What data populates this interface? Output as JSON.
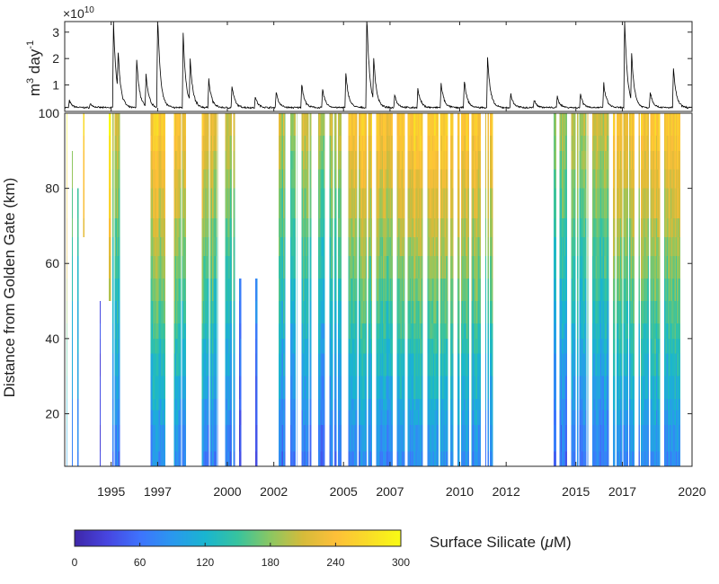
{
  "chart_data": [
    {
      "type": "line",
      "panel": "discharge",
      "title": "",
      "ylabel": "m3 day-1",
      "ylabel_base": "m",
      "ylabel_sup1": "3",
      "ylabel_mid": " day",
      "ylabel_sup2": "-1",
      "exponent_prefix": "×10",
      "exponent_power": "10",
      "ylim": [
        0,
        3.4
      ],
      "xlim": [
        1993,
        2020
      ],
      "y_ticks": [
        1,
        2,
        3
      ],
      "y_tick_labels": [
        "1",
        "2",
        "3"
      ],
      "peaks": [
        {
          "x": 1993.2,
          "y": 0.25
        },
        {
          "x": 1994.1,
          "y": 0.15
        },
        {
          "x": 1995.1,
          "y": 3.3
        },
        {
          "x": 1995.3,
          "y": 1.5
        },
        {
          "x": 1996.1,
          "y": 1.8
        },
        {
          "x": 1996.5,
          "y": 1.2
        },
        {
          "x": 1997.0,
          "y": 3.5
        },
        {
          "x": 1998.1,
          "y": 2.8
        },
        {
          "x": 1998.4,
          "y": 1.6
        },
        {
          "x": 1999.2,
          "y": 1.1
        },
        {
          "x": 2000.2,
          "y": 0.8
        },
        {
          "x": 2001.2,
          "y": 0.4
        },
        {
          "x": 2002.1,
          "y": 0.6
        },
        {
          "x": 2003.2,
          "y": 0.9
        },
        {
          "x": 2004.1,
          "y": 0.7
        },
        {
          "x": 2005.1,
          "y": 1.3
        },
        {
          "x": 2006.0,
          "y": 3.6
        },
        {
          "x": 2006.3,
          "y": 1.6
        },
        {
          "x": 2007.2,
          "y": 0.5
        },
        {
          "x": 2008.2,
          "y": 0.7
        },
        {
          "x": 2009.2,
          "y": 0.9
        },
        {
          "x": 2010.2,
          "y": 1.0
        },
        {
          "x": 2011.2,
          "y": 1.9
        },
        {
          "x": 2012.2,
          "y": 0.5
        },
        {
          "x": 2013.2,
          "y": 0.3
        },
        {
          "x": 2014.2,
          "y": 0.4
        },
        {
          "x": 2015.2,
          "y": 0.5
        },
        {
          "x": 2016.2,
          "y": 0.9
        },
        {
          "x": 2017.1,
          "y": 3.3
        },
        {
          "x": 2017.4,
          "y": 1.8
        },
        {
          "x": 2018.2,
          "y": 0.6
        },
        {
          "x": 2019.2,
          "y": 1.5
        }
      ]
    },
    {
      "type": "heatmap",
      "panel": "silicate",
      "ylabel": "Distance from Golden Gate  (km)",
      "xlim": [
        1993,
        2020
      ],
      "ylim": [
        6,
        100
      ],
      "x_ticks": [
        1995,
        1997,
        2000,
        2002,
        2005,
        2007,
        2010,
        2012,
        2015,
        2017,
        2020
      ],
      "x_tick_labels": [
        "1995",
        "1997",
        "2000",
        "2002",
        "2005",
        "2007",
        "2010",
        "2012",
        "2015",
        "2017",
        "2020"
      ],
      "y_ticks": [
        20,
        40,
        60,
        80,
        100
      ],
      "y_tick_labels": [
        "20",
        "40",
        "60",
        "80",
        "100"
      ],
      "distance_bins": [
        6,
        10,
        17,
        21,
        24,
        30,
        36,
        40,
        44,
        50,
        56,
        62,
        67,
        72,
        80,
        85,
        90,
        94,
        100
      ],
      "colorbar": {
        "label": "Surface Silicate (",
        "label_mu": "μ",
        "label_unit": "M)",
        "min": 0,
        "max": 300,
        "ticks": [
          0,
          60,
          120,
          180,
          240,
          300
        ],
        "tick_labels": [
          "0",
          "60",
          "120",
          "180",
          "240",
          "300"
        ],
        "colormap": [
          "#3e26a8",
          "#4745e0",
          "#3e73fd",
          "#2a98ee",
          "#19b5d0",
          "#37c39e",
          "#8bc762",
          "#d6bb3a",
          "#fdbf39",
          "#f9dc28",
          "#f9fb14"
        ]
      },
      "surveys": [
        {
          "start": 1993.0,
          "end": 1993.05,
          "top": 85,
          "bottom": 6,
          "level": 0.82
        },
        {
          "start": 1993.05,
          "end": 1993.12,
          "top": 100,
          "bottom": 6,
          "level": 0.85
        },
        {
          "start": 1993.3,
          "end": 1993.35,
          "top": 90,
          "bottom": 6,
          "level": 0.6
        },
        {
          "start": 1993.55,
          "end": 1993.6,
          "top": 80,
          "bottom": 6,
          "level": 0.55
        },
        {
          "start": 1993.8,
          "end": 1993.85,
          "top": 100,
          "bottom": 65,
          "level": 0.82
        },
        {
          "start": 1994.5,
          "end": 1994.55,
          "top": 50,
          "bottom": 6,
          "level": 0.1
        },
        {
          "start": 1994.9,
          "end": 1995.0,
          "top": 100,
          "bottom": 50,
          "level": 0.85
        },
        {
          "start": 1995.05,
          "end": 1995.35,
          "top": 100,
          "bottom": 6,
          "level": 0.6
        },
        {
          "start": 1996.7,
          "end": 1997.3,
          "top": 100,
          "bottom": 6,
          "level": 0.75
        },
        {
          "start": 1997.7,
          "end": 1998.2,
          "top": 100,
          "bottom": 6,
          "level": 0.72
        },
        {
          "start": 1998.9,
          "end": 1999.6,
          "top": 100,
          "bottom": 6,
          "level": 0.68
        },
        {
          "start": 1999.9,
          "end": 2000.3,
          "top": 100,
          "bottom": 6,
          "level": 0.62
        },
        {
          "start": 2000.5,
          "end": 2000.6,
          "top": 60,
          "bottom": 6,
          "level": 0.4
        },
        {
          "start": 2001.2,
          "end": 2001.3,
          "top": 60,
          "bottom": 6,
          "level": 0.42
        },
        {
          "start": 2002.2,
          "end": 2002.5,
          "top": 100,
          "bottom": 6,
          "level": 0.6
        },
        {
          "start": 2002.7,
          "end": 2003.0,
          "top": 100,
          "bottom": 6,
          "level": 0.55
        },
        {
          "start": 2003.2,
          "end": 2003.6,
          "top": 100,
          "bottom": 6,
          "level": 0.62
        },
        {
          "start": 2003.9,
          "end": 2004.2,
          "top": 100,
          "bottom": 6,
          "level": 0.58
        },
        {
          "start": 2004.4,
          "end": 2004.9,
          "top": 100,
          "bottom": 6,
          "level": 0.6
        },
        {
          "start": 2005.1,
          "end": 2006.2,
          "top": 100,
          "bottom": 6,
          "level": 0.72
        },
        {
          "start": 2006.4,
          "end": 2007.1,
          "top": 100,
          "bottom": 6,
          "level": 0.7
        },
        {
          "start": 2007.3,
          "end": 2008.4,
          "top": 100,
          "bottom": 6,
          "level": 0.75
        },
        {
          "start": 2008.6,
          "end": 2009.7,
          "top": 100,
          "bottom": 6,
          "level": 0.74
        },
        {
          "start": 2009.9,
          "end": 2010.9,
          "top": 100,
          "bottom": 6,
          "level": 0.73
        },
        {
          "start": 2011.1,
          "end": 2011.4,
          "top": 100,
          "bottom": 6,
          "level": 0.72
        },
        {
          "start": 2014.0,
          "end": 2014.6,
          "top": 100,
          "bottom": 6,
          "level": 0.55
        },
        {
          "start": 2014.8,
          "end": 2015.5,
          "top": 100,
          "bottom": 6,
          "level": 0.58
        },
        {
          "start": 2015.7,
          "end": 2016.4,
          "top": 100,
          "bottom": 6,
          "level": 0.6
        },
        {
          "start": 2016.6,
          "end": 2017.5,
          "top": 100,
          "bottom": 6,
          "level": 0.7
        },
        {
          "start": 2017.7,
          "end": 2018.6,
          "top": 100,
          "bottom": 6,
          "level": 0.72
        },
        {
          "start": 2018.8,
          "end": 2019.5,
          "top": 100,
          "bottom": 6,
          "level": 0.74
        }
      ],
      "gradient": {
        "top_factor": 1.15,
        "bottom_factor": 0.35
      }
    }
  ]
}
